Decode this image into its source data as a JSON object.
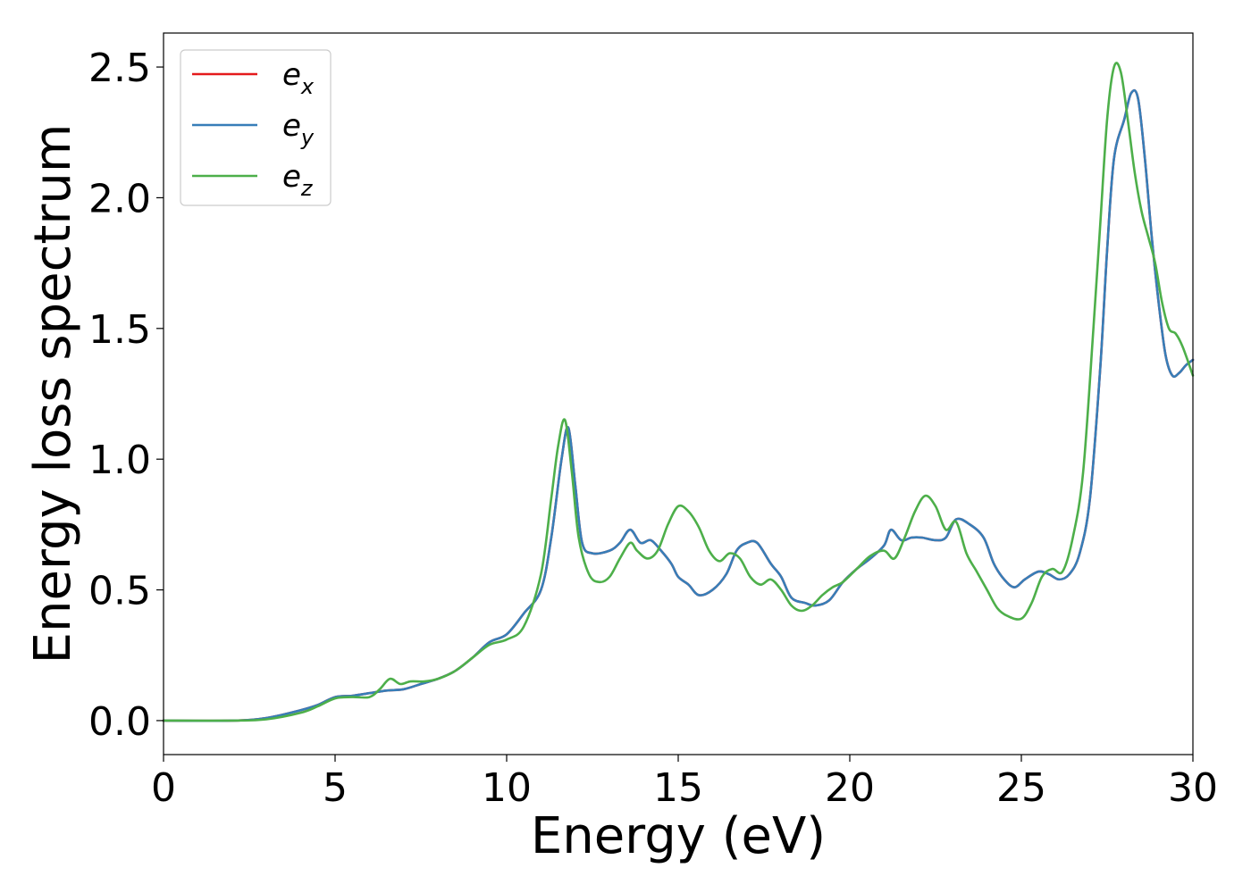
{
  "chart_data": {
    "type": "line",
    "xlabel": "Energy (eV)",
    "ylabel": "Energy loss spectrum",
    "xlim": [
      0,
      30
    ],
    "ylim": [
      -0.13,
      2.63
    ],
    "xticks": [
      0,
      5,
      10,
      15,
      20,
      25,
      30
    ],
    "yticks": [
      0.0,
      0.5,
      1.0,
      1.5,
      2.0,
      2.5
    ],
    "xtick_labels": [
      "0",
      "5",
      "10",
      "15",
      "20",
      "25",
      "30"
    ],
    "ytick_labels": [
      "0.0",
      "0.5",
      "1.0",
      "1.5",
      "2.0",
      "2.5"
    ],
    "grid": false,
    "legend_position": "top-left",
    "series": [
      {
        "name": "e",
        "subscript": "x",
        "color": "#e41a1c",
        "x": [
          0,
          2,
          3,
          4,
          4.5,
          5,
          5.5,
          6,
          6.5,
          7,
          7.5,
          8,
          8.5,
          9,
          9.5,
          10,
          10.5,
          11,
          11.3,
          11.6,
          11.8,
          12,
          12.2,
          12.5,
          13,
          13.3,
          13.6,
          13.9,
          14.2,
          14.5,
          14.8,
          15,
          15.3,
          15.6,
          16,
          16.4,
          16.7,
          17,
          17.3,
          17.7,
          18,
          18.3,
          18.7,
          19,
          19.4,
          19.8,
          20.2,
          20.6,
          21,
          21.2,
          21.5,
          21.8,
          22.1,
          22.5,
          22.8,
          23.1,
          23.5,
          23.9,
          24.2,
          24.5,
          24.8,
          25.1,
          25.5,
          25.8,
          26.1,
          26.4,
          26.7,
          27,
          27.3,
          27.5,
          27.7,
          28,
          28.2,
          28.4,
          28.6,
          28.8,
          29,
          29.2,
          29.4,
          29.6,
          29.8,
          30
        ],
        "values": [
          0.0,
          0.0,
          0.01,
          0.04,
          0.06,
          0.09,
          0.095,
          0.105,
          0.115,
          0.12,
          0.14,
          0.16,
          0.19,
          0.24,
          0.3,
          0.33,
          0.41,
          0.5,
          0.7,
          1.0,
          1.12,
          0.9,
          0.68,
          0.64,
          0.65,
          0.68,
          0.73,
          0.68,
          0.69,
          0.65,
          0.6,
          0.55,
          0.52,
          0.48,
          0.5,
          0.56,
          0.65,
          0.68,
          0.68,
          0.6,
          0.55,
          0.47,
          0.45,
          0.44,
          0.46,
          0.53,
          0.58,
          0.62,
          0.67,
          0.73,
          0.69,
          0.7,
          0.7,
          0.69,
          0.7,
          0.77,
          0.75,
          0.7,
          0.6,
          0.54,
          0.51,
          0.54,
          0.57,
          0.56,
          0.54,
          0.56,
          0.64,
          0.85,
          1.35,
          1.8,
          2.15,
          2.3,
          2.4,
          2.38,
          2.15,
          1.85,
          1.6,
          1.4,
          1.32,
          1.33,
          1.36,
          1.38
        ]
      },
      {
        "name": "e",
        "subscript": "y",
        "color": "#377eb8",
        "x": [
          0,
          2,
          3,
          4,
          4.5,
          5,
          5.5,
          6,
          6.5,
          7,
          7.5,
          8,
          8.5,
          9,
          9.5,
          10,
          10.5,
          11,
          11.3,
          11.6,
          11.8,
          12,
          12.2,
          12.5,
          13,
          13.3,
          13.6,
          13.9,
          14.2,
          14.5,
          14.8,
          15,
          15.3,
          15.6,
          16,
          16.4,
          16.7,
          17,
          17.3,
          17.7,
          18,
          18.3,
          18.7,
          19,
          19.4,
          19.8,
          20.2,
          20.6,
          21,
          21.2,
          21.5,
          21.8,
          22.1,
          22.5,
          22.8,
          23.1,
          23.5,
          23.9,
          24.2,
          24.5,
          24.8,
          25.1,
          25.5,
          25.8,
          26.1,
          26.4,
          26.7,
          27,
          27.3,
          27.5,
          27.7,
          28,
          28.2,
          28.4,
          28.6,
          28.8,
          29,
          29.2,
          29.4,
          29.6,
          29.8,
          30
        ],
        "values": [
          0.0,
          0.0,
          0.01,
          0.04,
          0.06,
          0.09,
          0.095,
          0.105,
          0.115,
          0.12,
          0.14,
          0.16,
          0.19,
          0.24,
          0.3,
          0.33,
          0.41,
          0.5,
          0.7,
          1.0,
          1.12,
          0.9,
          0.68,
          0.64,
          0.65,
          0.68,
          0.73,
          0.68,
          0.69,
          0.65,
          0.6,
          0.55,
          0.52,
          0.48,
          0.5,
          0.56,
          0.65,
          0.68,
          0.68,
          0.6,
          0.55,
          0.47,
          0.45,
          0.44,
          0.46,
          0.53,
          0.58,
          0.62,
          0.67,
          0.73,
          0.69,
          0.7,
          0.7,
          0.69,
          0.7,
          0.77,
          0.75,
          0.7,
          0.6,
          0.54,
          0.51,
          0.54,
          0.57,
          0.56,
          0.54,
          0.56,
          0.64,
          0.85,
          1.35,
          1.8,
          2.15,
          2.3,
          2.4,
          2.38,
          2.15,
          1.85,
          1.6,
          1.4,
          1.32,
          1.33,
          1.36,
          1.38
        ]
      },
      {
        "name": "e",
        "subscript": "z",
        "color": "#4daf4a",
        "x": [
          0,
          2,
          3,
          4,
          4.5,
          5,
          5.5,
          6,
          6.3,
          6.6,
          6.9,
          7.2,
          7.6,
          8,
          8.5,
          9,
          9.5,
          10,
          10.5,
          11,
          11.3,
          11.5,
          11.7,
          11.9,
          12.1,
          12.4,
          12.7,
          13,
          13.3,
          13.6,
          13.8,
          14.1,
          14.4,
          14.7,
          15,
          15.3,
          15.6,
          15.9,
          16.2,
          16.5,
          16.8,
          17.1,
          17.4,
          17.7,
          18,
          18.3,
          18.6,
          18.9,
          19.2,
          19.5,
          19.8,
          20.2,
          20.6,
          21,
          21.3,
          21.6,
          21.9,
          22.2,
          22.5,
          22.8,
          23.1,
          23.4,
          23.7,
          24,
          24.3,
          24.6,
          25,
          25.3,
          25.6,
          25.9,
          26.2,
          26.5,
          26.8,
          27.1,
          27.3,
          27.5,
          27.7,
          27.9,
          28.1,
          28.3,
          28.5,
          28.7,
          28.9,
          29.1,
          29.3,
          29.5,
          29.7,
          30
        ],
        "values": [
          0.0,
          0.0,
          0.005,
          0.03,
          0.055,
          0.085,
          0.09,
          0.09,
          0.12,
          0.16,
          0.14,
          0.15,
          0.15,
          0.16,
          0.19,
          0.24,
          0.29,
          0.31,
          0.36,
          0.56,
          0.85,
          1.05,
          1.15,
          0.95,
          0.7,
          0.56,
          0.53,
          0.55,
          0.62,
          0.68,
          0.65,
          0.62,
          0.65,
          0.75,
          0.82,
          0.8,
          0.74,
          0.65,
          0.61,
          0.64,
          0.62,
          0.55,
          0.52,
          0.54,
          0.5,
          0.44,
          0.42,
          0.44,
          0.48,
          0.51,
          0.53,
          0.58,
          0.63,
          0.65,
          0.62,
          0.7,
          0.8,
          0.86,
          0.82,
          0.73,
          0.76,
          0.64,
          0.57,
          0.5,
          0.43,
          0.4,
          0.39,
          0.45,
          0.55,
          0.58,
          0.57,
          0.7,
          0.95,
          1.5,
          1.9,
          2.3,
          2.5,
          2.48,
          2.3,
          2.1,
          1.95,
          1.85,
          1.75,
          1.6,
          1.5,
          1.48,
          1.43,
          1.32
        ]
      }
    ]
  }
}
